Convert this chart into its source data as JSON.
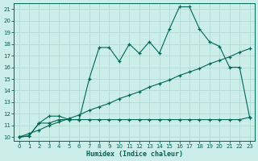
{
  "bg_color": "#cceee8",
  "grid_color": "#aad4ce",
  "line_color": "#006655",
  "xlabel": "Humidex (Indice chaleur)",
  "xlim_min": -0.5,
  "xlim_max": 23.5,
  "ylim_min": 9.7,
  "ylim_max": 21.5,
  "xticks": [
    0,
    1,
    2,
    3,
    4,
    5,
    6,
    7,
    8,
    9,
    10,
    11,
    12,
    13,
    14,
    15,
    16,
    17,
    18,
    19,
    20,
    21,
    22,
    23
  ],
  "yticks": [
    10,
    11,
    12,
    13,
    14,
    15,
    16,
    17,
    18,
    19,
    20,
    21
  ],
  "jagged_x": [
    0,
    1,
    2,
    3,
    4,
    5,
    6,
    7,
    8,
    9,
    10,
    11,
    12,
    13,
    14,
    15,
    16,
    17,
    18,
    19,
    20,
    21,
    22,
    23
  ],
  "jagged_y": [
    10.0,
    10.1,
    11.2,
    11.8,
    11.8,
    11.5,
    11.5,
    15.0,
    17.7,
    17.7,
    16.5,
    18.0,
    17.2,
    18.2,
    17.2,
    19.3,
    21.2,
    21.2,
    19.3,
    18.2,
    17.8,
    16.0,
    16.0,
    11.7
  ],
  "diag_x": [
    0,
    1,
    2,
    3,
    4,
    5,
    6,
    7,
    8,
    9,
    10,
    11,
    12,
    13,
    14,
    15,
    16,
    17,
    18,
    19,
    20,
    21,
    22,
    23
  ],
  "diag_y": [
    10.0,
    10.3,
    10.6,
    11.0,
    11.3,
    11.6,
    11.9,
    12.3,
    12.6,
    12.9,
    13.3,
    13.6,
    13.9,
    14.3,
    14.6,
    14.9,
    15.3,
    15.6,
    15.9,
    16.3,
    16.6,
    16.9,
    17.3,
    17.6
  ],
  "flat_x": [
    0,
    1,
    2,
    3,
    4,
    5,
    6,
    7,
    8,
    9,
    10,
    11,
    12,
    13,
    14,
    15,
    16,
    17,
    18,
    19,
    20,
    21,
    22,
    23
  ],
  "flat_y": [
    10.0,
    10.1,
    11.2,
    11.2,
    11.5,
    11.5,
    11.5,
    11.5,
    11.5,
    11.5,
    11.5,
    11.5,
    11.5,
    11.5,
    11.5,
    11.5,
    11.5,
    11.5,
    11.5,
    11.5,
    11.5,
    11.5,
    11.5,
    11.7
  ]
}
